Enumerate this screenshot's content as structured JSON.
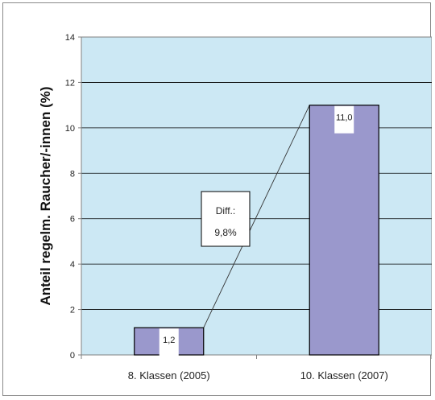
{
  "chart_data": {
    "type": "bar",
    "categories": [
      "8. Klassen (2005)",
      "10. Klassen (2007)"
    ],
    "values": [
      1.2,
      11.0
    ],
    "data_labels": [
      "1,2",
      "11,0"
    ],
    "ylabel": "Anteil regelm. Raucher/-innen (%)",
    "ylim": [
      0,
      14
    ],
    "yticks": [
      0,
      2,
      4,
      6,
      8,
      10,
      12,
      14
    ],
    "grid": true,
    "plot_background": "#cce8f4",
    "bar_color": "#9a98cc",
    "annotation": {
      "line1": "Diff.:",
      "line2": "9,8%"
    }
  }
}
